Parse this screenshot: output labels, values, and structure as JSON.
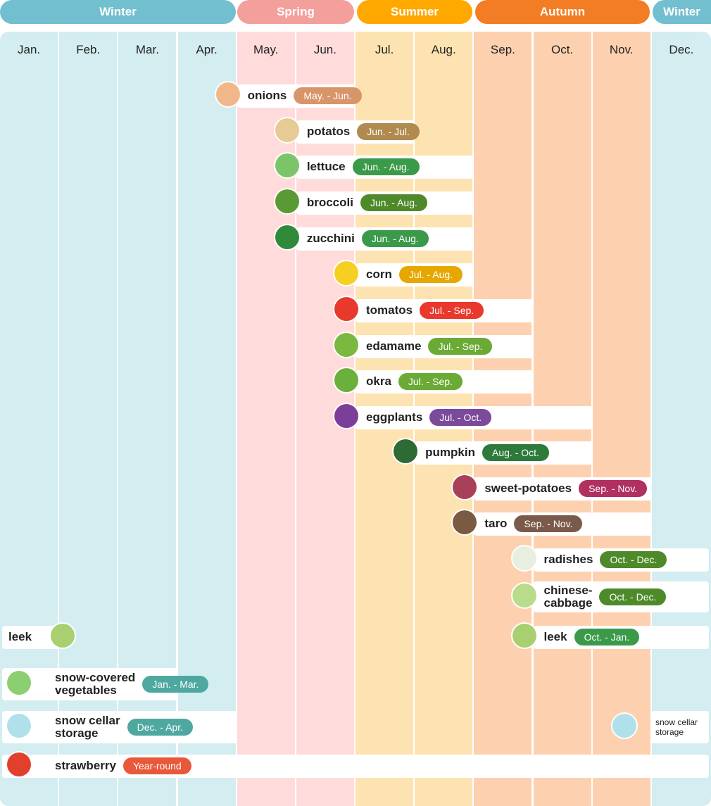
{
  "seasons": [
    {
      "label": "Winter",
      "color": "#72bfcf"
    },
    {
      "label": "Spring",
      "color": "#f3a09c"
    },
    {
      "label": "Summer",
      "color": "#ffa800"
    },
    {
      "label": "Autumn",
      "color": "#f37d25"
    },
    {
      "label": "Winter",
      "color": "#72bfcf"
    }
  ],
  "months": [
    {
      "label": "Jan.",
      "color": "#d3edf1"
    },
    {
      "label": "Feb.",
      "color": "#d3edf1"
    },
    {
      "label": "Mar.",
      "color": "#d3edf1"
    },
    {
      "label": "Apr.",
      "color": "#d3edf1"
    },
    {
      "label": "May.",
      "color": "#ffdcdb"
    },
    {
      "label": "Jun.",
      "color": "#ffdcdb"
    },
    {
      "label": "Jul.",
      "color": "#fde3b1"
    },
    {
      "label": "Aug.",
      "color": "#fde3b1"
    },
    {
      "label": "Sep.",
      "color": "#fdd1b0"
    },
    {
      "label": "Oct.",
      "color": "#fdd1b0"
    },
    {
      "label": "Nov.",
      "color": "#fdd1b0"
    },
    {
      "label": "Dec.",
      "color": "#d3edf1"
    }
  ],
  "items": [
    {
      "name": "onions",
      "period": "May. - Jun.",
      "start": 5,
      "end": 6,
      "badge_color": "#d9956a",
      "icon": "onion-icon",
      "icon_color": "#f0b88a"
    },
    {
      "name": "potatos",
      "period": "Jun. - Jul.",
      "start": 6,
      "end": 7,
      "badge_color": "#b08a4e",
      "icon": "potato-icon",
      "icon_color": "#e6cc94"
    },
    {
      "name": "lettuce",
      "period": "Jun. - Aug.",
      "start": 6,
      "end": 8,
      "badge_color": "#3a9a4a",
      "icon": "lettuce-icon",
      "icon_color": "#7cc46a"
    },
    {
      "name": "broccoli",
      "period": "Jun. - Aug.",
      "start": 6,
      "end": 8,
      "badge_color": "#4e8a2a",
      "icon": "broccoli-icon",
      "icon_color": "#5a9a34"
    },
    {
      "name": "zucchini",
      "period": "Jun. - Aug.",
      "start": 6,
      "end": 8,
      "badge_color": "#3a9a4a",
      "icon": "zucchini-icon",
      "icon_color": "#2f8a3a"
    },
    {
      "name": "corn",
      "period": "Jul. - Aug.",
      "start": 7,
      "end": 8,
      "badge_color": "#e6a800",
      "icon": "corn-icon",
      "icon_color": "#f5d020"
    },
    {
      "name": "tomatos",
      "period": "Jul. - Sep.",
      "start": 7,
      "end": 9,
      "badge_color": "#e8392c",
      "icon": "tomato-icon",
      "icon_color": "#e8392c"
    },
    {
      "name": "edamame",
      "period": "Jul. - Sep.",
      "start": 7,
      "end": 9,
      "badge_color": "#6aaa35",
      "icon": "edamame-icon",
      "icon_color": "#7ab83f"
    },
    {
      "name": "okra",
      "period": "Jul. - Sep.",
      "start": 7,
      "end": 9,
      "badge_color": "#6aaa35",
      "icon": "okra-icon",
      "icon_color": "#6ab03a"
    },
    {
      "name": "eggplants",
      "period": "Jul. - Oct.",
      "start": 7,
      "end": 10,
      "badge_color": "#7b4a9a",
      "icon": "eggplant-icon",
      "icon_color": "#7b3f9a"
    },
    {
      "name": "pumpkin",
      "period": "Aug. - Oct.",
      "start": 8,
      "end": 10,
      "badge_color": "#2e7a3a",
      "icon": "pumpkin-icon",
      "icon_color": "#2e6a34"
    },
    {
      "name": "sweet-potatoes",
      "period": "Sep. - Nov.",
      "start": 9,
      "end": 11,
      "badge_color": "#b03060",
      "icon": "sweet-potato-icon",
      "icon_color": "#a8405a"
    },
    {
      "name": "taro",
      "period": "Sep. - Nov.",
      "start": 9,
      "end": 11,
      "badge_color": "#7a5a4a",
      "icon": "taro-icon",
      "icon_color": "#7a5a40"
    },
    {
      "name": "radishes",
      "period": "Oct. - Dec.",
      "start": 10,
      "end": 12,
      "badge_color": "#4e8a2a",
      "icon": "radish-icon",
      "icon_color": "#e8efe0"
    },
    {
      "name": "chinese-\ncabbage",
      "period": "Oct. - Dec.",
      "start": 10,
      "end": 12,
      "badge_color": "#4e8a2a",
      "icon": "chinese-cabbage-icon",
      "icon_color": "#b8dc8a"
    },
    {
      "name": "leek",
      "period": "Oct. - Jan.",
      "start": 10,
      "end": 12,
      "badge_color": "#3a9a4a",
      "icon": "leek-icon",
      "icon_color": "#a8d070"
    },
    {
      "name": "snow-covered\nvegetables",
      "period": "Jan. - Mar.",
      "start": 1,
      "end": 3,
      "badge_color": "#4fa8a0",
      "icon": "snow-cabbage-icon",
      "icon_color": "#8ccf70"
    },
    {
      "name": "snow cellar\nstorage",
      "period": "Dec. - Apr.",
      "start": 1,
      "end": 4,
      "badge_color": "#4fa8a0",
      "icon": "snow-radish-icon",
      "icon_color": "#b0e0ea"
    },
    {
      "name": "strawberry",
      "period": "Year-round",
      "start": 1,
      "end": 12,
      "badge_color": "#e8583a",
      "icon": "strawberry-icon",
      "icon_color": "#e0402c"
    }
  ],
  "extras": {
    "leek_left": "leek",
    "snow_cellar_right": "snow cellar\nstorage"
  }
}
